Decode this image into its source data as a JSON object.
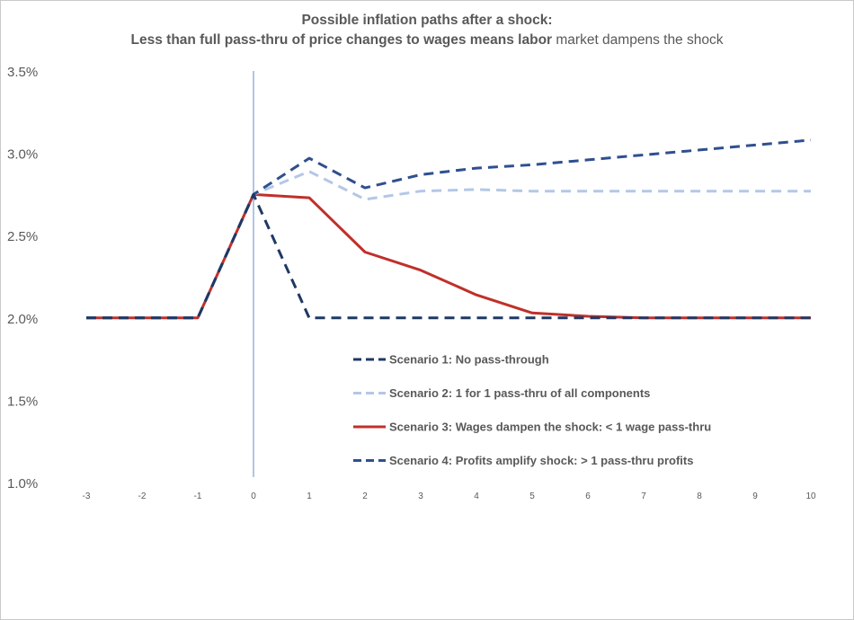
{
  "title": {
    "line1": "Possible inflation paths after a shock:",
    "line2_bold": "Less than full pass-thru of price changes to wages means labor",
    "line2_rest": " market dampens the shock"
  },
  "colors": {
    "scenario1": "#1f3864",
    "scenario2": "#b4c7e7",
    "scenario3": "#c0302a",
    "scenario4": "#2f4f8f",
    "shock_line": "#7f9fd0",
    "tick_text": "#595959"
  },
  "chart_data": {
    "type": "line",
    "title": "Possible inflation paths after a shock: Less than full pass-thru of price changes to wages means labor market dampens the shock",
    "x": [
      -3,
      -2,
      -1,
      0,
      1,
      2,
      3,
      4,
      5,
      6,
      7,
      8,
      9,
      10
    ],
    "xlim": [
      -3,
      10
    ],
    "ylim": [
      0.01,
      0.035
    ],
    "y_ticks": [
      "1.0%",
      "1.5%",
      "2.0%",
      "2.5%",
      "3.0%",
      "3.5%"
    ],
    "y_tick_values": [
      0.01,
      0.015,
      0.02,
      0.025,
      0.03,
      0.035
    ],
    "x_ticks": [
      "-3",
      "-2",
      "-1",
      "0",
      "1",
      "2",
      "3",
      "4",
      "5",
      "6",
      "7",
      "8",
      "9",
      "10"
    ],
    "grid": false,
    "vertical_marker_x": 0,
    "legend_position": "inside-bottom-center",
    "series": [
      {
        "name": "Scenario 1: No pass-through",
        "style": "dashed",
        "color": "#1f3864",
        "values": [
          0.02,
          0.02,
          0.02,
          0.0275,
          0.02,
          0.02,
          0.02,
          0.02,
          0.02,
          0.02,
          0.02,
          0.02,
          0.02,
          0.02
        ]
      },
      {
        "name": "Scenario 2: 1 for 1 pass-thru of all components",
        "style": "dashed",
        "color": "#b4c7e7",
        "values": [
          0.02,
          0.02,
          0.02,
          0.0275,
          0.0289,
          0.0272,
          0.0277,
          0.0278,
          0.0277,
          0.0277,
          0.0277,
          0.0277,
          0.0277,
          0.0277
        ]
      },
      {
        "name": "Scenario 3: Wages dampen the shock: < 1 wage pass-thru",
        "style": "solid",
        "color": "#c0302a",
        "values": [
          0.02,
          0.02,
          0.02,
          0.0275,
          0.0273,
          0.024,
          0.0229,
          0.0214,
          0.0203,
          0.0201,
          0.02,
          0.02,
          0.02,
          0.02
        ]
      },
      {
        "name": "Scenario 4: Profits amplify shock: > 1 pass-thru profits",
        "style": "dashed",
        "color": "#2f4f8f",
        "values": [
          0.02,
          0.02,
          0.02,
          0.0275,
          0.0297,
          0.0279,
          0.0287,
          0.0291,
          0.0293,
          0.0296,
          0.0299,
          0.0302,
          0.0305,
          0.0308
        ]
      }
    ]
  }
}
